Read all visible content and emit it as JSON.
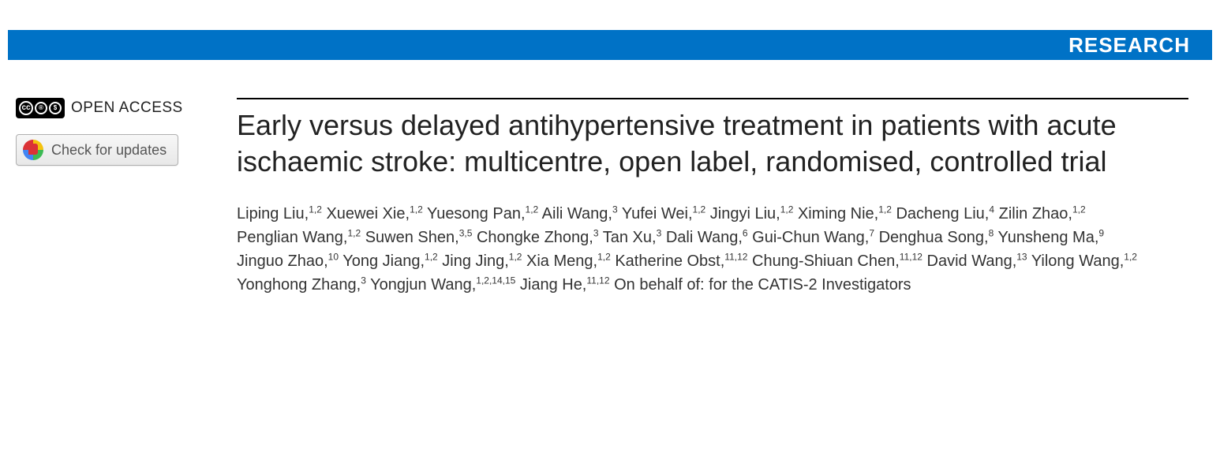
{
  "banner": {
    "label": "RESEARCH",
    "bg": "#0072c6",
    "fg": "#ffffff"
  },
  "sidebar": {
    "open_access_label": "OPEN ACCESS",
    "cc_icons": [
      "cc",
      "by",
      "nc"
    ],
    "updates_button": "Check for updates"
  },
  "article": {
    "title": "Early versus delayed antihypertensive treatment in patients with acute ischaemic stroke: multicentre, open label, randomised, controlled trial",
    "authors": [
      {
        "name": "Liping Liu",
        "aff": "1,2"
      },
      {
        "name": "Xuewei Xie",
        "aff": "1,2"
      },
      {
        "name": "Yuesong Pan",
        "aff": "1,2"
      },
      {
        "name": "Aili Wang",
        "aff": "3"
      },
      {
        "name": "Yufei Wei",
        "aff": "1,2"
      },
      {
        "name": "Jingyi Liu",
        "aff": "1,2"
      },
      {
        "name": "Ximing Nie",
        "aff": "1,2"
      },
      {
        "name": "Dacheng Liu",
        "aff": "4"
      },
      {
        "name": "Zilin Zhao",
        "aff": "1,2"
      },
      {
        "name": "Penglian Wang",
        "aff": "1,2"
      },
      {
        "name": "Suwen Shen",
        "aff": "3,5"
      },
      {
        "name": "Chongke Zhong",
        "aff": "3"
      },
      {
        "name": "Tan Xu",
        "aff": "3"
      },
      {
        "name": "Dali Wang",
        "aff": "6"
      },
      {
        "name": "Gui-Chun Wang",
        "aff": "7"
      },
      {
        "name": "Denghua Song",
        "aff": "8"
      },
      {
        "name": "Yunsheng Ma",
        "aff": "9"
      },
      {
        "name": "Jinguo Zhao",
        "aff": "10"
      },
      {
        "name": "Yong Jiang",
        "aff": "1,2"
      },
      {
        "name": "Jing Jing",
        "aff": "1,2"
      },
      {
        "name": "Xia Meng",
        "aff": "1,2"
      },
      {
        "name": "Katherine Obst",
        "aff": "11,12"
      },
      {
        "name": "Chung-Shiuan Chen",
        "aff": "11,12"
      },
      {
        "name": "David Wang",
        "aff": "13"
      },
      {
        "name": "Yilong Wang",
        "aff": "1,2"
      },
      {
        "name": "Yonghong Zhang",
        "aff": "3"
      },
      {
        "name": "Yongjun Wang",
        "aff": "1,2,14,15"
      },
      {
        "name": "Jiang He",
        "aff": "11,12"
      }
    ],
    "on_behalf": "On behalf of: for the CATIS-2 Investigators"
  }
}
